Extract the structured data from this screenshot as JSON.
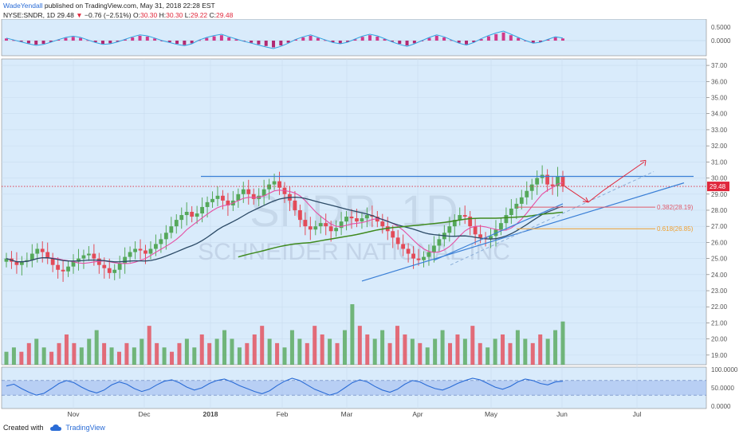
{
  "header": {
    "author": "WadeYendall",
    "published": "published on TradingView.com, May 31, 2018 22:28 EST",
    "symbol": "NYSE:SNDR, 1D",
    "last": "29.48",
    "change_arrow": "▼",
    "change": "−0.76 (−2.51%)",
    "o_label": "O:",
    "o_value": "30.30",
    "h_label": "H:",
    "h_value": "30.30",
    "l_label": "L:",
    "l_value": "29.22",
    "c_label": "C:",
    "c_value": "29.48"
  },
  "watermark": {
    "ticker": "SNDR, 1D",
    "company": "SCHNEIDER NATIONAL INC"
  },
  "footer": {
    "created_with": "Created with",
    "brand": "TradingView"
  },
  "colors": {
    "background": "#d9ebfb",
    "up_candle": "#55a85a",
    "down_candle": "#e34b58",
    "ma_fast": "#e64fa3",
    "ma_mid": "#2b4a66",
    "ma_slow": "#3f8a1e",
    "trendline": "#3a7fd6",
    "projection": "#e0283c",
    "fib_0382": "#e05a6a",
    "fib_0618": "#f0a030",
    "rsi_line": "#2a6cd6"
  },
  "chart_data": [
    {
      "type": "bar",
      "panel": "MACD histogram",
      "yticks": [
        "0.5000",
        "0.0000"
      ],
      "ylim": [
        -0.35,
        0.6
      ],
      "values": [
        0.08,
        0.02,
        -0.04,
        -0.1,
        -0.15,
        -0.12,
        -0.05,
        0.03,
        0.1,
        0.14,
        0.1,
        0.02,
        -0.06,
        -0.12,
        -0.1,
        -0.04,
        0.04,
        0.12,
        0.18,
        0.15,
        0.08,
        0.0,
        -0.06,
        -0.12,
        -0.16,
        -0.1,
        0.02,
        0.1,
        0.16,
        0.2,
        0.12,
        0.05,
        -0.02,
        -0.08,
        -0.14,
        -0.2,
        -0.25,
        -0.18,
        -0.08,
        0.04,
        0.12,
        0.18,
        0.1,
        0.02,
        -0.06,
        -0.1,
        -0.05,
        0.05,
        0.14,
        0.2,
        0.15,
        0.06,
        -0.04,
        -0.12,
        -0.18,
        -0.1,
        0.0,
        0.1,
        0.18,
        0.12,
        0.02,
        -0.08,
        -0.14,
        -0.06,
        0.06,
        0.16,
        0.24,
        0.3,
        0.2,
        0.1,
        0.0,
        -0.08,
        -0.05,
        0.04,
        0.12,
        0.08
      ]
    },
    {
      "type": "candlestick",
      "panel": "price",
      "title": "NYSE:SNDR, 1D",
      "last_price": 29.48,
      "yticks": [
        "37.00",
        "36.00",
        "35.00",
        "34.00",
        "33.00",
        "32.00",
        "31.00",
        "30.00",
        "29.00",
        "28.00",
        "27.00",
        "26.00",
        "25.00",
        "24.00",
        "23.00",
        "22.00",
        "21.00",
        "20.00",
        "19.00"
      ],
      "ylim": [
        18.4,
        37.4
      ],
      "xlabels": [
        "Nov",
        "Dec",
        "2018",
        "Feb",
        "Mar",
        "Apr",
        "May",
        "Jun",
        "Jul"
      ],
      "close": [
        25.0,
        24.8,
        24.6,
        24.8,
        24.9,
        25.3,
        25.6,
        25.4,
        25.0,
        24.6,
        24.3,
        24.2,
        24.5,
        24.8,
        25.0,
        25.2,
        25.3,
        25.0,
        24.6,
        24.4,
        24.1,
        24.3,
        24.7,
        25.1,
        25.4,
        25.6,
        25.5,
        25.3,
        25.6,
        25.9,
        26.2,
        26.6,
        27.0,
        27.4,
        27.7,
        27.9,
        27.6,
        27.8,
        28.2,
        28.5,
        28.7,
        28.9,
        28.6,
        28.3,
        28.6,
        29.0,
        29.3,
        29.0,
        28.7,
        28.9,
        29.3,
        29.6,
        29.8,
        29.4,
        29.0,
        28.6,
        28.0,
        27.4,
        27.0,
        26.8,
        27.0,
        27.2,
        27.0,
        26.7,
        26.9,
        27.3,
        27.6,
        27.5,
        27.3,
        27.5,
        27.7,
        27.6,
        27.3,
        27.0,
        26.7,
        26.3,
        25.9,
        25.6,
        25.3,
        25.0,
        24.9,
        25.1,
        25.4,
        25.8,
        26.2,
        26.6,
        27.0,
        27.4,
        27.7,
        27.6,
        27.0,
        26.5,
        26.3,
        26.2,
        26.4,
        26.8,
        27.2,
        27.7,
        28.1,
        28.4,
        28.8,
        29.2,
        29.6,
        30.0,
        30.2,
        29.6,
        29.5,
        30.1,
        29.48
      ]
    },
    {
      "type": "bar",
      "panel": "volume",
      "values": [
        3,
        4,
        3,
        5,
        6,
        4,
        3,
        5,
        7,
        5,
        4,
        6,
        8,
        5,
        4,
        3,
        5,
        4,
        6,
        9,
        5,
        4,
        3,
        5,
        6,
        4,
        7,
        5,
        6,
        8,
        6,
        4,
        5,
        7,
        9,
        6,
        5,
        4,
        8,
        6,
        5,
        9,
        7,
        6,
        5,
        8,
        14,
        9,
        7,
        6,
        8,
        5,
        9,
        7,
        6,
        5,
        4,
        6,
        8,
        5,
        7,
        6,
        9,
        5,
        4,
        6,
        7,
        5,
        8,
        6,
        5,
        7,
        6,
        8,
        10
      ]
    },
    {
      "type": "line",
      "panel": "RSI",
      "yticks": [
        "100.0000",
        "50.0000",
        "0.0000"
      ],
      "ylim": [
        0,
        100
      ],
      "band": [
        30,
        70
      ],
      "values": [
        55,
        60,
        48,
        38,
        30,
        35,
        48,
        62,
        70,
        64,
        52,
        42,
        36,
        44,
        58,
        66,
        60,
        48,
        40,
        46,
        58,
        68,
        72,
        64,
        52,
        44,
        50,
        62,
        70,
        74,
        66,
        56,
        48,
        40,
        34,
        42,
        56,
        68,
        76,
        70,
        58,
        46,
        38,
        30,
        36,
        50,
        64,
        72,
        66,
        54,
        44,
        38,
        46,
        60,
        70,
        66,
        56,
        48,
        44,
        52,
        62,
        70,
        76,
        72,
        62,
        52,
        46,
        54,
        66,
        74,
        70,
        62,
        58,
        66,
        68
      ]
    }
  ],
  "annotations": {
    "fib_0382": "0.382(28.19)",
    "fib_0618": "0.618(26.85)",
    "last_price_label": "29.48"
  }
}
